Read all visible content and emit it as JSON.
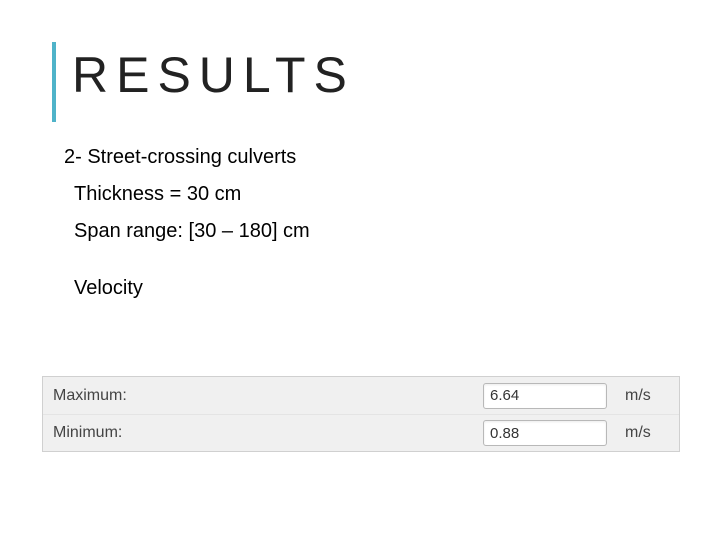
{
  "title": "RESULTS",
  "section": "2- Street-crossing culverts",
  "thickness_line": "Thickness = 30 cm",
  "span_line": "Span range: [30 – 180] cm",
  "velocity_label": "Velocity",
  "props": {
    "background_color": "#f0f0f0",
    "border_color": "#d0d0d0",
    "input_bg": "#ffffff",
    "input_border": "#b8b8b8",
    "rows": [
      {
        "label": "Maximum:",
        "value": "6.64",
        "unit": "m/s"
      },
      {
        "label": "Minimum:",
        "value": "0.88",
        "unit": "m/s"
      }
    ]
  },
  "accent_color": "#4fb3c9",
  "title_fontsize": 50,
  "body_fontsize": 20
}
